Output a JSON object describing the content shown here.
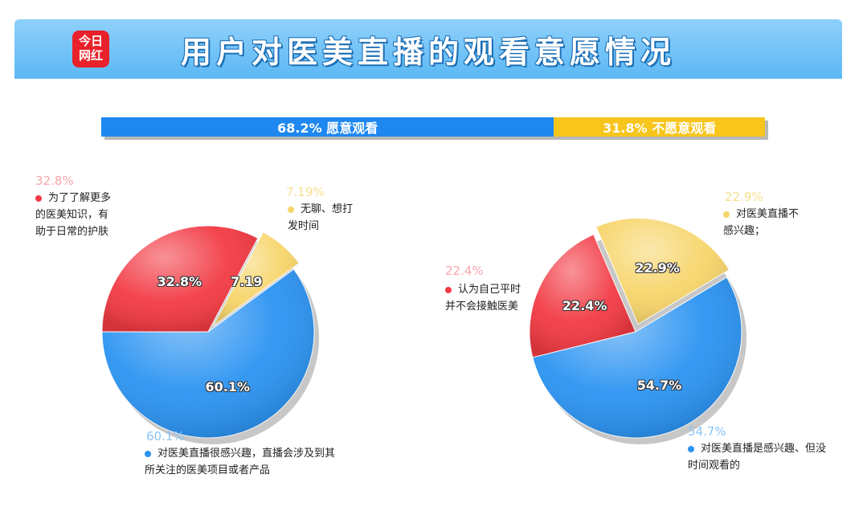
{
  "header": {
    "logo_line1": "今日",
    "logo_line2": "网红",
    "title": "用户对医美直播的观看意愿情况"
  },
  "summary_bar": {
    "willing_label": "68.2% 愿意观看",
    "unwilling_label": "31.8% 不愿意观看"
  },
  "chart_data": [
    {
      "type": "bar",
      "orientation": "horizontal-stacked",
      "categories": [
        "愿意观看",
        "不愿意观看"
      ],
      "values": [
        68.2,
        31.8
      ],
      "colors": [
        "#1e88f0",
        "#f7c51b"
      ]
    },
    {
      "type": "pie",
      "labels": [
        "为了了解更多的医美知识，有助于日常的护肤",
        "无聊、想打发时间",
        "对医美直播很感兴趣，直播会涉及到其所关注的医美项目或者产品"
      ],
      "values": [
        32.8,
        7.19,
        60.1
      ],
      "slice_labels": [
        "32.8%",
        "7.19",
        "60.1%"
      ],
      "outer_labels": [
        "32.8%",
        "7.19%",
        "60.1%"
      ],
      "colors": [
        "#f23a44",
        "#f7d56a",
        "#2c94f2"
      ]
    },
    {
      "type": "pie",
      "labels": [
        "认为自己平时并不会接触医美",
        "对医美直播不感兴趣；",
        "对医美直播是感兴趣、但没时间观看的"
      ],
      "values": [
        22.4,
        22.9,
        54.7
      ],
      "slice_labels": [
        "22.4%",
        "22.9%",
        "54.7%"
      ],
      "outer_labels": [
        "22.4%",
        "22.9%",
        "54.7%"
      ],
      "colors": [
        "#f23a44",
        "#f7d56a",
        "#2c94f2"
      ]
    }
  ],
  "left_legend": {
    "red": "为了了解更多的医美知识，有助于日常的护肤",
    "yellow": "无聊、想打发时间",
    "blue": "对医美直播很感兴趣，直播会涉及到其所关注的医美项目或者产品"
  },
  "right_legend": {
    "red": "认为自己平时并不会接触医美",
    "yellow": "对医美直播不感兴趣；",
    "blue": "对医美直播是感兴趣、但没时间观看的"
  }
}
